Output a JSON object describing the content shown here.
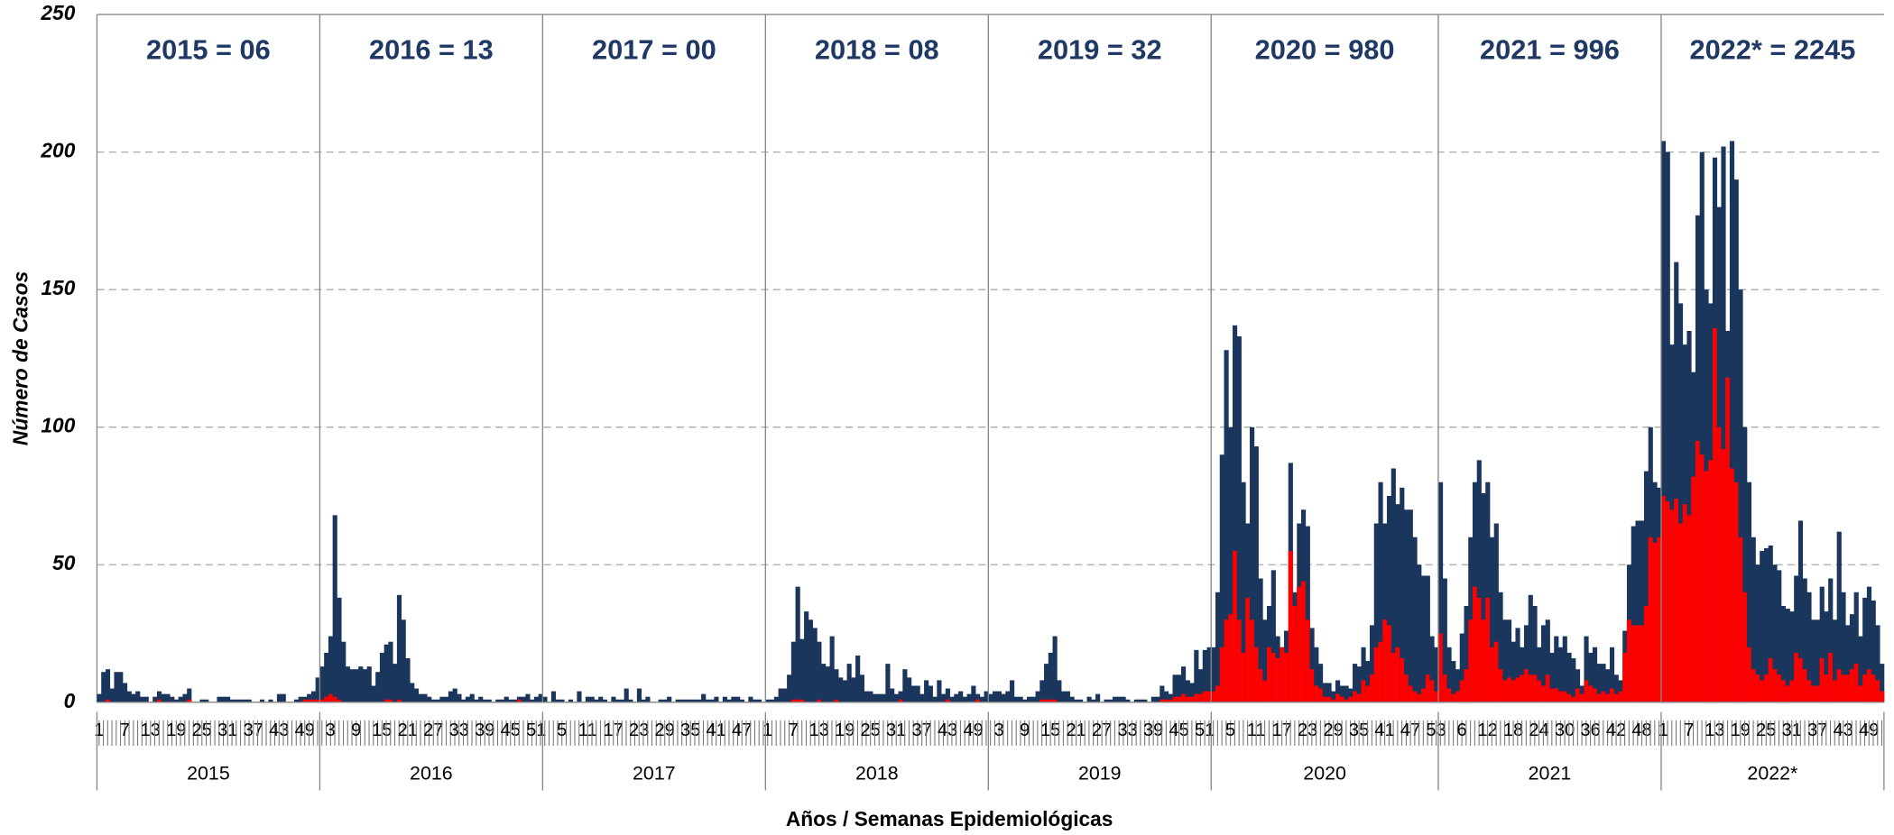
{
  "chart_data": {
    "type": "bar",
    "y_label": "Número de Casos",
    "x_label": "Años / Semanas Epidemiológicas",
    "ylim": [
      0,
      250
    ],
    "yticks": [
      0,
      50,
      100,
      150,
      200,
      250
    ],
    "grid": true,
    "groups": [
      {
        "label": "2015",
        "annotation": "2015 = 06",
        "weeks": [
          1,
          null,
          null,
          null,
          null,
          null,
          7,
          null,
          null,
          null,
          null,
          null,
          13,
          null,
          null,
          null,
          null,
          null,
          19,
          null,
          null,
          null,
          null,
          null,
          25,
          null,
          null,
          null,
          null,
          null,
          31,
          null,
          null,
          null,
          null,
          null,
          37,
          null,
          null,
          null,
          null,
          null,
          43,
          null,
          null,
          null,
          null,
          null,
          49,
          null,
          null,
          null
        ]
      },
      {
        "label": "2016",
        "annotation": "2016 = 13",
        "weeks": [
          null,
          null,
          3,
          null,
          null,
          null,
          null,
          null,
          9,
          null,
          null,
          null,
          null,
          null,
          15,
          null,
          null,
          null,
          null,
          null,
          21,
          null,
          null,
          null,
          null,
          null,
          27,
          null,
          null,
          null,
          null,
          null,
          33,
          null,
          null,
          null,
          null,
          null,
          39,
          null,
          null,
          null,
          null,
          null,
          45,
          null,
          null,
          null,
          null,
          null,
          51,
          null
        ]
      },
      {
        "label": "2017",
        "annotation": "2017 = 00",
        "weeks": [
          null,
          null,
          null,
          null,
          5,
          null,
          null,
          null,
          null,
          null,
          11,
          null,
          null,
          null,
          null,
          null,
          17,
          null,
          null,
          null,
          null,
          null,
          23,
          null,
          null,
          null,
          null,
          null,
          29,
          null,
          null,
          null,
          null,
          null,
          35,
          null,
          null,
          null,
          null,
          null,
          41,
          null,
          null,
          null,
          null,
          null,
          47,
          null,
          null,
          null,
          null,
          null
        ]
      },
      {
        "label": "2018",
        "annotation": "2018 = 08",
        "weeks": [
          1,
          null,
          null,
          null,
          null,
          null,
          7,
          null,
          null,
          null,
          null,
          null,
          13,
          null,
          null,
          null,
          null,
          null,
          19,
          null,
          null,
          null,
          null,
          null,
          25,
          null,
          null,
          null,
          null,
          null,
          31,
          null,
          null,
          null,
          null,
          null,
          37,
          null,
          null,
          null,
          null,
          null,
          43,
          null,
          null,
          null,
          null,
          null,
          49,
          null,
          null,
          null
        ]
      },
      {
        "label": "2019",
        "annotation": "2019 = 32",
        "weeks": [
          null,
          null,
          3,
          null,
          null,
          null,
          null,
          null,
          9,
          null,
          null,
          null,
          null,
          null,
          15,
          null,
          null,
          null,
          null,
          null,
          21,
          null,
          null,
          null,
          null,
          null,
          27,
          null,
          null,
          null,
          null,
          null,
          33,
          null,
          null,
          null,
          null,
          null,
          39,
          null,
          null,
          null,
          null,
          null,
          45,
          null,
          null,
          null,
          null,
          null,
          51,
          null
        ]
      },
      {
        "label": "2020",
        "annotation": "2020 = 980",
        "weeks": [
          null,
          null,
          null,
          null,
          5,
          null,
          null,
          null,
          null,
          null,
          11,
          null,
          null,
          null,
          null,
          null,
          17,
          null,
          null,
          null,
          null,
          null,
          23,
          null,
          null,
          null,
          null,
          null,
          29,
          null,
          null,
          null,
          null,
          null,
          35,
          null,
          null,
          null,
          null,
          null,
          41,
          null,
          null,
          null,
          null,
          null,
          47,
          null,
          null,
          null,
          null,
          null,
          53
        ]
      },
      {
        "label": "2021",
        "annotation": "2021 = 996",
        "weeks": [
          null,
          null,
          null,
          null,
          null,
          6,
          null,
          null,
          null,
          null,
          null,
          12,
          null,
          null,
          null,
          null,
          null,
          18,
          null,
          null,
          null,
          null,
          null,
          24,
          null,
          null,
          null,
          null,
          null,
          30,
          null,
          null,
          null,
          null,
          null,
          36,
          null,
          null,
          null,
          null,
          null,
          42,
          null,
          null,
          null,
          null,
          null,
          48,
          null,
          null,
          null,
          null
        ]
      },
      {
        "label": "2022*",
        "annotation": "2022* = 2245",
        "weeks": [
          1,
          null,
          null,
          null,
          null,
          null,
          7,
          null,
          null,
          null,
          null,
          null,
          13,
          null,
          null,
          null,
          null,
          null,
          19,
          null,
          null,
          null,
          null,
          null,
          25,
          null,
          null,
          null,
          null,
          null,
          31,
          null,
          null,
          null,
          null,
          null,
          37,
          null,
          null,
          null,
          null,
          null,
          43,
          null,
          null,
          null,
          null,
          null,
          49,
          null,
          null,
          null
        ]
      }
    ],
    "series": [
      {
        "color": "#1b365d",
        "values": [
          3,
          11,
          12,
          5,
          11,
          11,
          7,
          4,
          3,
          4,
          2,
          2,
          0,
          2,
          4,
          3,
          3,
          2,
          1,
          2,
          3,
          5,
          0,
          0,
          1,
          1,
          0,
          0,
          2,
          2,
          2,
          1,
          1,
          1,
          1,
          1,
          0,
          0,
          1,
          0,
          1,
          0,
          3,
          3,
          0,
          0,
          1,
          2,
          2,
          3,
          4,
          9,
          13,
          18,
          24,
          68,
          38,
          22,
          13,
          12,
          12,
          13,
          12,
          13,
          6,
          11,
          18,
          21,
          22,
          14,
          39,
          30,
          16,
          7,
          5,
          3,
          3,
          2,
          1,
          1,
          2,
          2,
          4,
          5,
          3,
          1,
          2,
          3,
          1,
          2,
          1,
          1,
          0,
          1,
          1,
          2,
          1,
          1,
          2,
          2,
          3,
          1,
          2,
          3,
          2,
          0,
          4,
          1,
          1,
          0,
          1,
          0,
          4,
          0,
          2,
          2,
          1,
          2,
          1,
          0,
          2,
          1,
          1,
          5,
          1,
          0,
          5,
          1,
          2,
          0,
          0,
          1,
          1,
          2,
          0,
          1,
          1,
          1,
          1,
          1,
          1,
          3,
          1,
          1,
          2,
          0,
          2,
          1,
          2,
          2,
          1,
          0,
          2,
          1,
          1,
          0,
          1,
          1,
          2,
          5,
          5,
          10,
          22,
          42,
          23,
          33,
          30,
          27,
          22,
          14,
          13,
          24,
          12,
          9,
          8,
          14,
          9,
          17,
          10,
          4,
          4,
          3,
          3,
          3,
          14,
          5,
          3,
          4,
          12,
          9,
          6,
          6,
          3,
          8,
          6,
          2,
          8,
          3,
          5,
          2,
          3,
          4,
          2,
          3,
          6,
          3,
          2,
          4,
          3,
          4,
          4,
          3,
          4,
          8,
          2,
          2,
          1,
          2,
          2,
          4,
          8,
          14,
          18,
          24,
          8,
          4,
          4,
          2,
          1,
          1,
          0,
          2,
          1,
          3,
          0,
          1,
          1,
          2,
          2,
          2,
          1,
          0,
          1,
          1,
          1,
          0,
          2,
          2,
          6,
          4,
          3,
          10,
          10,
          13,
          8,
          7,
          19,
          12,
          19,
          20,
          20,
          40,
          90,
          128,
          100,
          137,
          133,
          80,
          65,
          100,
          93,
          45,
          30,
          35,
          48,
          24,
          20,
          26,
          87,
          40,
          65,
          70,
          64,
          27,
          20,
          14,
          7,
          7,
          4,
          8,
          6,
          6,
          5,
          14,
          13,
          20,
          15,
          28,
          65,
          80,
          65,
          75,
          85,
          72,
          78,
          70,
          70,
          60,
          50,
          46,
          46,
          24,
          20,
          80,
          45,
          20,
          15,
          12,
          25,
          35,
          60,
          80,
          88,
          76,
          80,
          60,
          65,
          40,
          30,
          30,
          22,
          27,
          20,
          28,
          39,
          35,
          20,
          28,
          30,
          18,
          24,
          20,
          24,
          18,
          16,
          12,
          6,
          24,
          18,
          20,
          14,
          14,
          12,
          20,
          10,
          8,
          26,
          50,
          64,
          66,
          66,
          84,
          100,
          80,
          78,
          204,
          200,
          130,
          160,
          145,
          130,
          135,
          120,
          177,
          200,
          150,
          145,
          198,
          180,
          202,
          135,
          204,
          190,
          150,
          100,
          80,
          60,
          50,
          55,
          56,
          57,
          50,
          48,
          35,
          34,
          33,
          46,
          66,
          45,
          40,
          30,
          30,
          42,
          33,
          45,
          30,
          62,
          40,
          28,
          32,
          40,
          24,
          38,
          42,
          37,
          28,
          14
        ]
      },
      {
        "color": "#ff0000",
        "values": [
          0,
          0,
          1,
          0,
          0,
          0,
          0,
          0,
          0,
          0,
          0,
          0,
          0,
          0,
          1,
          0,
          0,
          0,
          0,
          0,
          0,
          1,
          0,
          0,
          0,
          0,
          0,
          0,
          0,
          0,
          0,
          0,
          0,
          0,
          0,
          0,
          0,
          0,
          0,
          0,
          0,
          0,
          0,
          0,
          0,
          0,
          0,
          0,
          1,
          1,
          1,
          1,
          1,
          2,
          3,
          2,
          1,
          0,
          0,
          0,
          0,
          0,
          0,
          0,
          0,
          0,
          0,
          1,
          1,
          0,
          1,
          0,
          0,
          0,
          0,
          0,
          0,
          0,
          0,
          0,
          0,
          0,
          0,
          0,
          0,
          0,
          0,
          0,
          0,
          0,
          0,
          0,
          0,
          0,
          0,
          0,
          0,
          0,
          1,
          0,
          0,
          0,
          0,
          0,
          0,
          0,
          0,
          0,
          0,
          0,
          0,
          0,
          0,
          0,
          0,
          0,
          0,
          0,
          0,
          0,
          0,
          0,
          0,
          0,
          0,
          0,
          0,
          0,
          0,
          0,
          0,
          0,
          0,
          0,
          0,
          0,
          0,
          0,
          0,
          0,
          0,
          0,
          0,
          0,
          0,
          0,
          0,
          0,
          0,
          0,
          0,
          0,
          0,
          0,
          0,
          0,
          0,
          0,
          0,
          0,
          0,
          0,
          1,
          1,
          1,
          0,
          0,
          0,
          1,
          0,
          0,
          0,
          1,
          0,
          0,
          0,
          0,
          0,
          0,
          0,
          0,
          0,
          0,
          0,
          0,
          0,
          0,
          1,
          0,
          0,
          0,
          0,
          0,
          0,
          0,
          0,
          0,
          0,
          1,
          0,
          0,
          0,
          0,
          0,
          0,
          1,
          0,
          0,
          0,
          0,
          0,
          0,
          0,
          0,
          0,
          0,
          0,
          0,
          0,
          0,
          1,
          1,
          1,
          1,
          0,
          0,
          0,
          0,
          0,
          0,
          0,
          0,
          0,
          0,
          0,
          0,
          0,
          0,
          0,
          0,
          0,
          0,
          0,
          0,
          0,
          0,
          0,
          0,
          1,
          1,
          1,
          2,
          2,
          3,
          2,
          2,
          3,
          3,
          4,
          4,
          4,
          6,
          20,
          30,
          32,
          55,
          30,
          18,
          38,
          30,
          20,
          12,
          8,
          20,
          18,
          16,
          20,
          18,
          55,
          35,
          42,
          44,
          30,
          12,
          6,
          5,
          2,
          2,
          1,
          3,
          2,
          1,
          2,
          4,
          3,
          8,
          6,
          10,
          20,
          22,
          30,
          28,
          18,
          20,
          16,
          10,
          6,
          4,
          3,
          5,
          10,
          8,
          4,
          25,
          10,
          5,
          3,
          4,
          8,
          12,
          30,
          42,
          38,
          30,
          38,
          20,
          22,
          12,
          8,
          9,
          8,
          9,
          10,
          12,
          10,
          10,
          8,
          6,
          10,
          5,
          5,
          4,
          4,
          3,
          2,
          5,
          3,
          8,
          6,
          5,
          3,
          4,
          3,
          5,
          3,
          4,
          18,
          30,
          28,
          28,
          28,
          35,
          60,
          58,
          60,
          75,
          73,
          70,
          74,
          65,
          72,
          68,
          82,
          95,
          90,
          84,
          88,
          136,
          100,
          92,
          118,
          85,
          80,
          60,
          40,
          20,
          12,
          10,
          8,
          10,
          16,
          12,
          10,
          8,
          6,
          8,
          18,
          16,
          12,
          8,
          6,
          6,
          16,
          10,
          18,
          8,
          12,
          10,
          10,
          12,
          14,
          6,
          10,
          12,
          10,
          8,
          4
        ]
      }
    ]
  }
}
